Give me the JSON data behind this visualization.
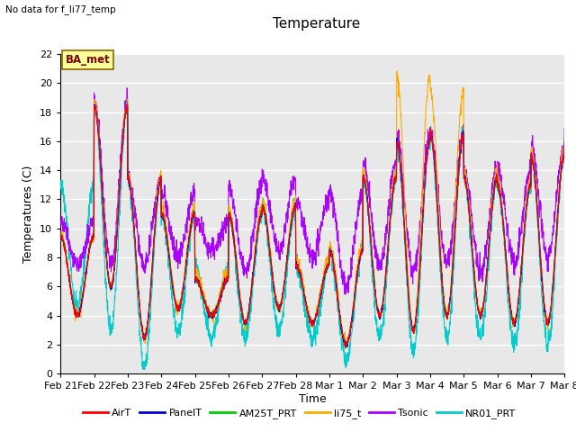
{
  "title": "Temperature",
  "subtitle": "No data for f_li77_temp",
  "ylabel": "Temperatures (C)",
  "xlabel": "Time",
  "annotation": "BA_met",
  "ylim": [
    0,
    22
  ],
  "yticks": [
    0,
    2,
    4,
    6,
    8,
    10,
    12,
    14,
    16,
    18,
    20,
    22
  ],
  "legend_labels": [
    "AirT",
    "PanelT",
    "AM25T_PRT",
    "li75_t",
    "Tsonic",
    "NR01_PRT"
  ],
  "legend_colors": [
    "#ff0000",
    "#0000cc",
    "#00cc00",
    "#ffaa00",
    "#aa00ff",
    "#00cccc"
  ],
  "line_colors": {
    "AirT": "#ff0000",
    "PanelT": "#0000cc",
    "AM25T_PRT": "#00cc00",
    "li75_t": "#ffaa00",
    "Tsonic": "#aa00ff",
    "NR01_PRT": "#00cccc"
  },
  "bg_color": "#e8e8e8",
  "grid_color": "#ffffff",
  "title_fontsize": 11,
  "label_fontsize": 9,
  "tick_fontsize": 8,
  "xtick_labels": [
    "Feb 21",
    "Feb 22",
    "Feb 23",
    "Feb 24",
    "Feb 25",
    "Feb 26",
    "Feb 27",
    "Feb 28",
    "Mar 1",
    "Mar 2",
    "Mar 3",
    "Mar 4",
    "Mar 5",
    "Mar 6",
    "Mar 7",
    "Mar 8"
  ],
  "daily_max_base": [
    9.5,
    18.5,
    13.5,
    11.0,
    6.5,
    11.0,
    11.5,
    7.5,
    8.5,
    13.5,
    16.0,
    16.5,
    13.5,
    13.0,
    15.0,
    16.0
  ],
  "daily_min_base": [
    4.0,
    6.0,
    2.5,
    4.5,
    4.0,
    3.5,
    4.5,
    3.5,
    2.0,
    4.0,
    3.0,
    4.0,
    4.0,
    3.5,
    3.5,
    5.0
  ],
  "tsonic_daily_max": [
    10.5,
    19.0,
    13.5,
    12.5,
    10.5,
    13.0,
    13.5,
    12.0,
    12.5,
    14.5,
    16.5,
    16.5,
    14.0,
    14.0,
    15.5,
    16.5
  ],
  "tsonic_daily_min": [
    7.5,
    7.5,
    7.5,
    8.0,
    8.5,
    7.0,
    8.5,
    8.0,
    6.0,
    7.5,
    7.0,
    7.5,
    7.0,
    7.5,
    8.0,
    8.5
  ],
  "li75_daily_max": [
    9.5,
    18.8,
    13.8,
    11.5,
    7.0,
    11.5,
    12.0,
    8.0,
    9.0,
    14.0,
    20.5,
    19.5,
    14.0,
    13.5,
    15.5,
    16.5
  ],
  "li75_daily_min": [
    4.0,
    6.0,
    2.5,
    4.5,
    4.0,
    3.5,
    4.5,
    3.5,
    2.0,
    4.0,
    3.0,
    4.0,
    4.0,
    3.5,
    3.5,
    5.0
  ],
  "nr01_daily_max": [
    13.0,
    18.5,
    13.5,
    11.0,
    7.5,
    11.0,
    11.5,
    7.5,
    8.5,
    13.5,
    16.0,
    16.5,
    13.5,
    13.0,
    15.0,
    16.0
  ],
  "nr01_daily_min": [
    4.5,
    3.0,
    0.5,
    3.0,
    2.5,
    2.5,
    3.0,
    2.5,
    1.0,
    2.5,
    1.5,
    2.5,
    2.5,
    2.0,
    2.0,
    4.0
  ]
}
